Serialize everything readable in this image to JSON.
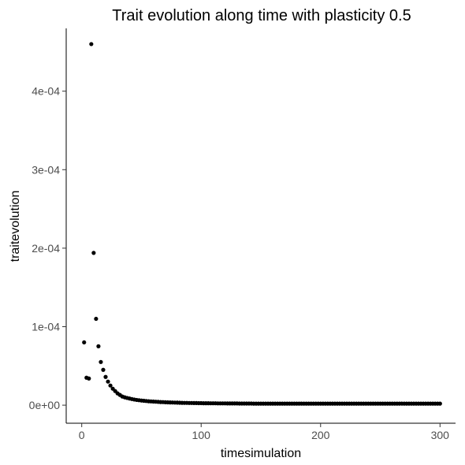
{
  "chart_data": {
    "type": "scatter",
    "title": "Trait evolution along time with plasticity 0.5",
    "xlabel": "timesimulation",
    "ylabel": "traitevolution",
    "xlim": [
      -13,
      313
    ],
    "ylim": [
      -2.3e-05,
      0.00048
    ],
    "x_ticks": [
      0,
      100,
      200,
      300
    ],
    "x_tick_labels": [
      "0",
      "100",
      "200",
      "300"
    ],
    "y_ticks": [
      0,
      0.0001,
      0.0002,
      0.0003,
      0.0004
    ],
    "y_tick_labels": [
      "0e+00",
      "1e-04",
      "2e-04",
      "3e-04",
      "4e-04"
    ],
    "grid": false,
    "legend": "none",
    "point_color": "#000000",
    "x": [
      2,
      4,
      6,
      8,
      10,
      12,
      14,
      16,
      18,
      20,
      22,
      24,
      26,
      28,
      30,
      32,
      34,
      36,
      38,
      40,
      42,
      44,
      46,
      48,
      50,
      52,
      54,
      56,
      58,
      60,
      62,
      64,
      66,
      68,
      70,
      72,
      74,
      76,
      78,
      80,
      82,
      84,
      86,
      88,
      90,
      92,
      94,
      96,
      98,
      100,
      102,
      104,
      106,
      108,
      110,
      112,
      114,
      116,
      118,
      120,
      122,
      124,
      126,
      128,
      130,
      132,
      134,
      136,
      138,
      140,
      142,
      144,
      146,
      148,
      150,
      152,
      154,
      156,
      158,
      160,
      162,
      164,
      166,
      168,
      170,
      172,
      174,
      176,
      178,
      180,
      182,
      184,
      186,
      188,
      190,
      192,
      194,
      196,
      198,
      200,
      202,
      204,
      206,
      208,
      210,
      212,
      214,
      216,
      218,
      220,
      222,
      224,
      226,
      228,
      230,
      232,
      234,
      236,
      238,
      240,
      242,
      244,
      246,
      248,
      250,
      252,
      254,
      256,
      258,
      260,
      262,
      264,
      266,
      268,
      270,
      272,
      274,
      276,
      278,
      280,
      282,
      284,
      286,
      288,
      290,
      292,
      294,
      296,
      298,
      300
    ],
    "y": [
      8e-05,
      3.5e-05,
      3.4e-05,
      0.00046,
      0.000194,
      0.00011,
      7.5e-05,
      5.5e-05,
      4.5e-05,
      3.6e-05,
      3e-05,
      2.5e-05,
      2.1e-05,
      1.8e-05,
      1.5e-05,
      1.3e-05,
      1.1e-05,
      1e-05,
      9.2e-06,
      8.5e-06,
      7.8e-06,
      7.2e-06,
      6.7e-06,
      6.3e-06,
      5.9e-06,
      5.6e-06,
      5.3e-06,
      5e-06,
      4.8e-06,
      4.6e-06,
      4.4e-06,
      4.2e-06,
      4e-06,
      3.9e-06,
      3.7e-06,
      3.6e-06,
      3.5e-06,
      3.4e-06,
      3.3e-06,
      3.2e-06,
      3.1e-06,
      3e-06,
      2.9e-06,
      2.9e-06,
      2.8e-06,
      2.8e-06,
      2.7e-06,
      2.7e-06,
      2.6e-06,
      2.6e-06,
      2.5e-06,
      2.5e-06,
      2.5e-06,
      2.4e-06,
      2.4e-06,
      2.4e-06,
      2.3e-06,
      2.3e-06,
      2.3e-06,
      2.3e-06,
      2.2e-06,
      2.2e-06,
      2.2e-06,
      2.2e-06,
      2.2e-06,
      2.1e-06,
      2.1e-06,
      2.1e-06,
      2.1e-06,
      2.1e-06,
      2.1e-06,
      2e-06,
      2e-06,
      2e-06,
      2e-06,
      2e-06,
      2e-06,
      2e-06,
      2e-06,
      2e-06,
      2e-06,
      2e-06,
      2e-06,
      2e-06,
      2e-06,
      2e-06,
      2e-06,
      2e-06,
      2e-06,
      2e-06,
      2e-06,
      2e-06,
      2e-06,
      2e-06,
      2e-06,
      2e-06,
      2e-06,
      2e-06,
      2e-06,
      2e-06,
      2e-06,
      2e-06,
      2e-06,
      2e-06,
      2e-06,
      2e-06,
      2e-06,
      2e-06,
      2e-06,
      2e-06,
      2e-06,
      2e-06,
      2e-06,
      2e-06,
      2e-06,
      2e-06,
      2e-06,
      2e-06,
      2e-06,
      2e-06,
      2e-06,
      2e-06,
      2e-06,
      2e-06,
      2e-06,
      2e-06,
      2e-06,
      2e-06,
      2e-06,
      2e-06,
      2e-06,
      2e-06,
      2e-06,
      2e-06,
      2e-06,
      2e-06,
      2e-06,
      2e-06,
      2e-06,
      2e-06,
      2e-06,
      2e-06,
      2e-06,
      2e-06,
      2e-06,
      2e-06,
      2e-06,
      2e-06,
      2e-06,
      2e-06
    ]
  }
}
